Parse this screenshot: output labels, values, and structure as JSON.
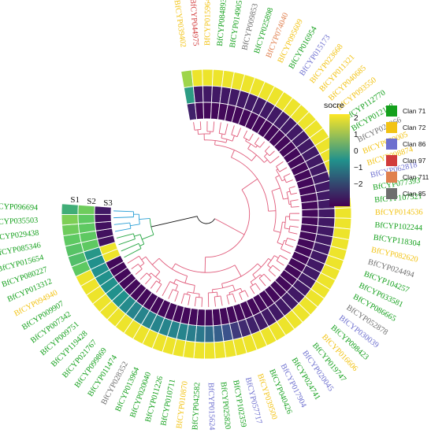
{
  "chart_data": {
    "type": "heatmap",
    "layout": "circular heatmap with clustering dendrogram",
    "rows": [
      "S1",
      "S2",
      "S3"
    ],
    "legend": {
      "title": "socre",
      "scale_min": -2,
      "scale_max": 2,
      "ticks": [
        "2",
        "1",
        "0",
        "−1",
        "−2"
      ],
      "colors": [
        "#fde725",
        "#21918c",
        "#440154"
      ]
    },
    "clans": [
      {
        "name": "Clan 71",
        "color": "#14a01c"
      },
      {
        "name": "Clan 72",
        "color": "#f2c314"
      },
      {
        "name": "Clan 86",
        "color": "#6d6fcf"
      },
      {
        "name": "Clan 97",
        "color": "#d13b3b"
      },
      {
        "name": "Clan 711",
        "color": "#e0804f"
      },
      {
        "name": "Clan 85",
        "color": "#6e6e6e"
      }
    ],
    "genes": [
      {
        "name": "BfCYP039402",
        "clan": "Clan 72",
        "values": [
          1.4,
          0.2,
          -1.6
        ]
      },
      {
        "name": "BfCYP044975",
        "clan": "Clan 97",
        "values": [
          1.9,
          -1.7,
          -1.9
        ]
      },
      {
        "name": "BfCYP015964",
        "clan": "Clan 72",
        "values": [
          1.9,
          -1.7,
          -1.9
        ]
      },
      {
        "name": "BfCYP084893",
        "clan": "Clan 71",
        "values": [
          1.9,
          -1.7,
          -1.9
        ]
      },
      {
        "name": "BfCYP014905",
        "clan": "Clan 71",
        "values": [
          1.9,
          -1.7,
          -1.9
        ]
      },
      {
        "name": "BfCYP009853",
        "clan": "Clan 85",
        "values": [
          1.9,
          -1.7,
          -1.9
        ]
      },
      {
        "name": "BfCYP025898",
        "clan": "Clan 71",
        "values": [
          1.9,
          -1.7,
          -1.9
        ]
      },
      {
        "name": "BfCYP074040",
        "clan": "Clan 711",
        "values": [
          1.9,
          -1.7,
          -1.9
        ]
      },
      {
        "name": "BfCYP095609",
        "clan": "Clan 72",
        "values": [
          1.9,
          -1.7,
          -1.9
        ]
      },
      {
        "name": "BfCYP016954",
        "clan": "Clan 71",
        "values": [
          1.9,
          -1.7,
          -1.9
        ]
      },
      {
        "name": "BfCYP015173",
        "clan": "Clan 86",
        "values": [
          1.9,
          -1.7,
          -1.9
        ]
      },
      {
        "name": "BfCYP023668",
        "clan": "Clan 72",
        "values": [
          1.9,
          -1.7,
          -1.9
        ]
      },
      {
        "name": "BfCYP011321",
        "clan": "Clan 72",
        "values": [
          1.9,
          -1.7,
          -1.9
        ]
      },
      {
        "name": "BfCYP040685",
        "clan": "Clan 72",
        "values": [
          1.9,
          -1.7,
          -1.9
        ]
      },
      {
        "name": "BfCYP093550",
        "clan": "Clan 72",
        "values": [
          1.9,
          -1.7,
          -1.9
        ]
      },
      {
        "name": "BfCYP112770",
        "clan": "Clan 71",
        "values": [
          1.9,
          -1.7,
          -1.9
        ]
      },
      {
        "name": "BfCYP012138",
        "clan": "Clan 71",
        "values": [
          1.9,
          -1.7,
          -1.9
        ]
      },
      {
        "name": "BfCYP024366",
        "clan": "Clan 85",
        "values": [
          1.9,
          -1.7,
          -1.9
        ]
      },
      {
        "name": "BfCYP099005",
        "clan": "Clan 72",
        "values": [
          1.9,
          -1.7,
          -1.9
        ]
      },
      {
        "name": "BfCYP098874",
        "clan": "Clan 72",
        "values": [
          1.9,
          -1.7,
          -1.9
        ]
      },
      {
        "name": "BfCYP062818",
        "clan": "Clan 86",
        "values": [
          1.9,
          -1.7,
          -1.9
        ]
      },
      {
        "name": "BfCYP077393",
        "clan": "Clan 71",
        "values": [
          1.9,
          -1.7,
          -1.9
        ]
      },
      {
        "name": "BfCYP107521",
        "clan": "Clan 71",
        "values": [
          1.9,
          -1.7,
          -1.9
        ]
      },
      {
        "name": "BfCYP014536",
        "clan": "Clan 72",
        "values": [
          1.9,
          -1.7,
          -1.9
        ]
      },
      {
        "name": "BfCYP102244",
        "clan": "Clan 71",
        "values": [
          1.9,
          -1.7,
          -1.9
        ]
      },
      {
        "name": "BfCYP118304",
        "clan": "Clan 71",
        "values": [
          1.9,
          -1.7,
          -1.9
        ]
      },
      {
        "name": "BfCYP082620",
        "clan": "Clan 72",
        "values": [
          1.9,
          -1.7,
          -1.9
        ]
      },
      {
        "name": "BfCYP024494",
        "clan": "Clan 85",
        "values": [
          1.9,
          -1.7,
          -1.9
        ]
      },
      {
        "name": "BfCYP104257",
        "clan": "Clan 71",
        "values": [
          1.9,
          -1.7,
          -1.9
        ]
      },
      {
        "name": "BfCYP033581",
        "clan": "Clan 71",
        "values": [
          1.9,
          -1.7,
          -1.9
        ]
      },
      {
        "name": "BfCYP086665",
        "clan": "Clan 71",
        "values": [
          1.9,
          -1.7,
          -1.9
        ]
      },
      {
        "name": "BfCYP052878",
        "clan": "Clan 85",
        "values": [
          1.9,
          -1.7,
          -1.9
        ]
      },
      {
        "name": "BfCYP030039",
        "clan": "Clan 86",
        "values": [
          1.9,
          -1.7,
          -1.9
        ]
      },
      {
        "name": "BfCYP098423",
        "clan": "Clan 71",
        "values": [
          1.9,
          -1.7,
          -1.9
        ]
      },
      {
        "name": "BfCYP016606",
        "clan": "Clan 72",
        "values": [
          1.9,
          -1.7,
          -1.9
        ]
      },
      {
        "name": "BfCYP019747",
        "clan": "Clan 71",
        "values": [
          1.9,
          -1.7,
          -1.9
        ]
      },
      {
        "name": "BfCYP020045",
        "clan": "Clan 86",
        "values": [
          1.9,
          -1.7,
          -1.9
        ]
      },
      {
        "name": "BfCYP024741",
        "clan": "Clan 71",
        "values": [
          1.9,
          -1.7,
          -1.9
        ]
      },
      {
        "name": "BfCYP017904",
        "clan": "Clan 86",
        "values": [
          1.9,
          -1.7,
          -1.9
        ]
      },
      {
        "name": "BfCYP040426",
        "clan": "Clan 71",
        "values": [
          1.9,
          -1.6,
          -1.9
        ]
      },
      {
        "name": "BfCYP039500",
        "clan": "Clan 72",
        "values": [
          1.9,
          -1.5,
          -1.9
        ]
      },
      {
        "name": "BfCYP057717",
        "clan": "Clan 86",
        "values": [
          1.9,
          -1.3,
          -1.9
        ]
      },
      {
        "name": "BfCYP102359",
        "clan": "Clan 71",
        "values": [
          1.9,
          -1.0,
          -1.9
        ]
      },
      {
        "name": "BfCYP025820",
        "clan": "Clan 71",
        "values": [
          1.9,
          -0.8,
          -1.9
        ]
      },
      {
        "name": "BfCYP015624",
        "clan": "Clan 86",
        "values": [
          1.9,
          -0.6,
          -1.9
        ]
      },
      {
        "name": "BfCYP042582",
        "clan": "Clan 71",
        "values": [
          1.9,
          -0.4,
          -1.9
        ]
      },
      {
        "name": "BfCYP010870",
        "clan": "Clan 72",
        "values": [
          1.9,
          -0.3,
          -1.9
        ]
      },
      {
        "name": "BfCYP010711",
        "clan": "Clan 71",
        "values": [
          1.9,
          -0.2,
          -1.9
        ]
      },
      {
        "name": "BfCYP011226",
        "clan": "Clan 71",
        "values": [
          1.9,
          -0.2,
          -1.9
        ]
      },
      {
        "name": "BfCYP020040",
        "clan": "Clan 71",
        "values": [
          1.9,
          -0.2,
          -1.9
        ]
      },
      {
        "name": "BfCYP013964",
        "clan": "Clan 71",
        "values": [
          1.9,
          -0.2,
          -1.9
        ]
      },
      {
        "name": "BfCYP028352",
        "clan": "Clan 85",
        "values": [
          1.9,
          -0.2,
          -1.9
        ]
      },
      {
        "name": "BfCYP011474",
        "clan": "Clan 71",
        "values": [
          1.9,
          -0.2,
          -1.9
        ]
      },
      {
        "name": "BfCYP099869",
        "clan": "Clan 71",
        "values": [
          1.9,
          -0.2,
          -1.9
        ]
      },
      {
        "name": "BfCYP021767",
        "clan": "Clan 71",
        "values": [
          1.9,
          -0.1,
          -1.9
        ]
      },
      {
        "name": "BfCYP119428",
        "clan": "Clan 71",
        "values": [
          1.9,
          0.0,
          -1.9
        ]
      },
      {
        "name": "BfCYP009751",
        "clan": "Clan 71",
        "values": [
          1.9,
          0.0,
          -1.9
        ]
      },
      {
        "name": "BfCYP007342",
        "clan": "Clan 71",
        "values": [
          1.9,
          0.0,
          -1.9
        ]
      },
      {
        "name": "BfCYP009907",
        "clan": "Clan 71",
        "values": [
          1.9,
          0.0,
          -1.9
        ]
      },
      {
        "name": "BfCYP094940",
        "clan": "Clan 72",
        "values": [
          1.9,
          0.0,
          -1.9
        ]
      },
      {
        "name": "BfCYP013312",
        "clan": "Clan 71",
        "values": [
          1.0,
          0.0,
          1.9
        ]
      },
      {
        "name": "BfCYP080227",
        "clan": "Clan 71",
        "values": [
          0.8,
          0.1,
          1.9
        ]
      },
      {
        "name": "BfCYP015654",
        "clan": "Clan 71",
        "values": [
          0.9,
          1.0,
          -1.8
        ]
      },
      {
        "name": "BfCYP085346",
        "clan": "Clan 71",
        "values": [
          1.0,
          1.0,
          -1.8
        ]
      },
      {
        "name": "BfCYP029438",
        "clan": "Clan 71",
        "values": [
          1.1,
          1.0,
          -1.8
        ]
      },
      {
        "name": "BfCYP035503",
        "clan": "Clan 71",
        "values": [
          1.2,
          1.0,
          -1.8
        ]
      },
      {
        "name": "BfCYP096694",
        "clan": "Clan 71",
        "values": [
          0.5,
          1.1,
          -1.7
        ]
      }
    ]
  }
}
